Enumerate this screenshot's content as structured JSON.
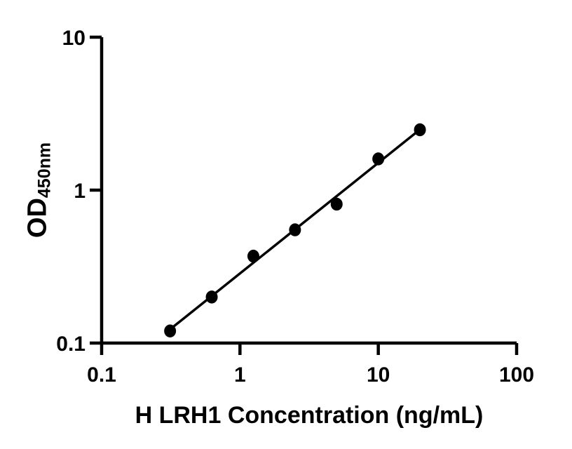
{
  "figure": {
    "background_color": "#ffffff",
    "ink_color": "#000000"
  },
  "chart_data": {
    "type": "scatter",
    "title": "",
    "xlabel": "H LRH1 Concentration (ng/mL)",
    "ylabel": "OD",
    "ylabel_subscript": "450nm",
    "x_scale": "log",
    "y_scale": "log",
    "xlim": [
      0.1,
      100
    ],
    "ylim": [
      0.1,
      10
    ],
    "grid": false,
    "legend": "none",
    "marker": "filled-circle",
    "marker_color": "#000000",
    "line_color": "#000000",
    "x": [
      0.3125,
      0.625,
      1.25,
      2.5,
      5,
      10,
      20
    ],
    "y": [
      0.12,
      0.2,
      0.37,
      0.55,
      0.81,
      1.6,
      2.48
    ],
    "fit_line": {
      "x1": 0.3125,
      "y1": 0.123,
      "x2": 20,
      "y2": 2.49
    },
    "x_ticks": {
      "values": [
        0.1,
        1,
        10,
        100
      ],
      "labels": [
        "0.1",
        "1",
        "10",
        "100"
      ]
    },
    "y_ticks": {
      "values": [
        0.1,
        1,
        10
      ],
      "labels": [
        "0.1",
        "1",
        "10"
      ]
    }
  }
}
